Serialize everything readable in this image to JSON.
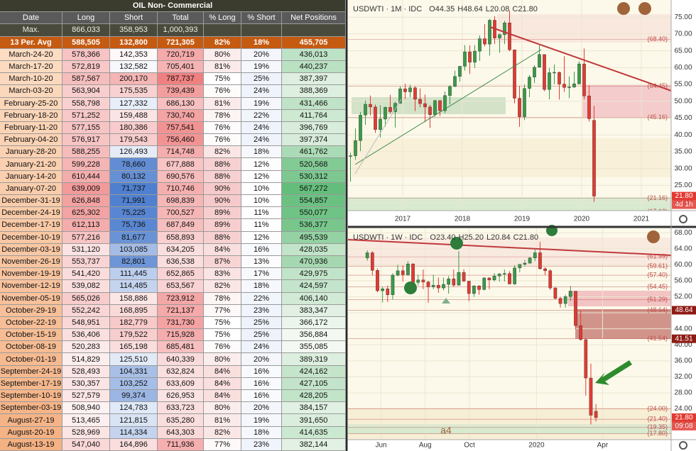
{
  "table": {
    "title": "OIL Non- Commercial",
    "header": [
      "Date",
      "Long",
      "Short",
      "Total",
      "% Long",
      "% Short",
      "Net Positions"
    ],
    "max": [
      "Max.",
      "866,033",
      "358,953",
      "1,000,393"
    ],
    "avg": [
      "13 Per. Avg",
      "588,505",
      "132,800",
      "721,305",
      "82%",
      "18%",
      "455,705"
    ],
    "rows": [
      [
        "March-24-20",
        "578,366",
        "142,353",
        "720,719",
        "80%",
        "20%",
        "436,013"
      ],
      [
        "March-17-20",
        "572,819",
        "132,582",
        "705,401",
        "81%",
        "19%",
        "440,237"
      ],
      [
        "March-10-20",
        "587,567",
        "200,170",
        "787,737",
        "75%",
        "25%",
        "387,397"
      ],
      [
        "March-03-20",
        "563,904",
        "175,535",
        "739,439",
        "76%",
        "24%",
        "388,369"
      ],
      [
        "February-25-20",
        "558,798",
        "127,332",
        "686,130",
        "81%",
        "19%",
        "431,466"
      ],
      [
        "February-18-20",
        "571,252",
        "159,488",
        "730,740",
        "78%",
        "22%",
        "411,764"
      ],
      [
        "February-11-20",
        "577,155",
        "180,386",
        "757,541",
        "76%",
        "24%",
        "396,769"
      ],
      [
        "February-04-20",
        "576,917",
        "179,543",
        "756,460",
        "76%",
        "24%",
        "397,374"
      ],
      [
        "January-28-20",
        "588,255",
        "126,493",
        "714,748",
        "82%",
        "18%",
        "461,762"
      ],
      [
        "January-21-20",
        "599,228",
        "78,660",
        "677,888",
        "88%",
        "12%",
        "520,568"
      ],
      [
        "January-14-20",
        "610,444",
        "80,132",
        "690,576",
        "88%",
        "12%",
        "530,312"
      ],
      [
        "January-07-20",
        "639,009",
        "71,737",
        "710,746",
        "90%",
        "10%",
        "567,272"
      ],
      [
        "December-31-19",
        "626,848",
        "71,991",
        "698,839",
        "90%",
        "10%",
        "554,857"
      ],
      [
        "December-24-19",
        "625,302",
        "75,225",
        "700,527",
        "89%",
        "11%",
        "550,077"
      ],
      [
        "December-17-19",
        "612,113",
        "75,736",
        "687,849",
        "89%",
        "11%",
        "536,377"
      ],
      [
        "December-10-19",
        "577,216",
        "81,677",
        "658,893",
        "88%",
        "12%",
        "495,539"
      ],
      [
        "December-03-19",
        "531,120",
        "103,085",
        "634,205",
        "84%",
        "16%",
        "428,035"
      ],
      [
        "November-26-19",
        "553,737",
        "82,801",
        "636,538",
        "87%",
        "13%",
        "470,936"
      ],
      [
        "November-19-19",
        "541,420",
        "111,445",
        "652,865",
        "83%",
        "17%",
        "429,975"
      ],
      [
        "November-12-19",
        "539,082",
        "114,485",
        "653,567",
        "82%",
        "18%",
        "424,597"
      ],
      [
        "November-05-19",
        "565,026",
        "158,886",
        "723,912",
        "78%",
        "22%",
        "406,140"
      ],
      [
        "October-29-19",
        "552,242",
        "168,895",
        "721,137",
        "77%",
        "23%",
        "383,347"
      ],
      [
        "October-22-19",
        "548,951",
        "182,779",
        "731,730",
        "75%",
        "25%",
        "366,172"
      ],
      [
        "October-15-19",
        "536,406",
        "179,522",
        "715,928",
        "75%",
        "25%",
        "356,884"
      ],
      [
        "October-08-19",
        "520,283",
        "165,198",
        "685,481",
        "76%",
        "24%",
        "355,085"
      ],
      [
        "October-01-19",
        "514,829",
        "125,510",
        "640,339",
        "80%",
        "20%",
        "389,319"
      ],
      [
        "September-24-19",
        "528,493",
        "104,331",
        "632,824",
        "84%",
        "16%",
        "424,162"
      ],
      [
        "September-17-19",
        "530,357",
        "103,252",
        "633,609",
        "84%",
        "16%",
        "427,105"
      ],
      [
        "September-10-19",
        "527,579",
        "99,374",
        "626,953",
        "84%",
        "16%",
        "428,205"
      ],
      [
        "September-03-19",
        "508,940",
        "124,783",
        "633,723",
        "80%",
        "20%",
        "384,157"
      ],
      [
        "August-27-19",
        "513,465",
        "121,815",
        "635,280",
        "81%",
        "19%",
        "391,650"
      ],
      [
        "August-20-19",
        "528,969",
        "114,334",
        "643,303",
        "82%",
        "18%",
        "414,635"
      ],
      [
        "August-13-19",
        "547,040",
        "164,896",
        "711,936",
        "77%",
        "23%",
        "382,144"
      ]
    ]
  },
  "chart_data": [
    {
      "type": "candlestick",
      "title": "USDWTI · 1M · IDC",
      "ohlc_label": [
        "O44.35",
        "H48.64",
        "L20.08",
        "C21.80"
      ],
      "up_color": "#3a9a48",
      "down_color": "#e23a32",
      "level_color": "#c0504d",
      "xlim": [
        -0.5,
        64.5
      ],
      "ylim": [
        17.5,
        80.1
      ],
      "xticks": [
        {
          "value": 10.5,
          "label": "2017"
        },
        {
          "value": 22.5,
          "label": "2018"
        },
        {
          "value": 34.5,
          "label": "2019"
        },
        {
          "value": 46.5,
          "label": "2020"
        },
        {
          "value": 58.5,
          "label": "2021"
        }
      ],
      "yticks": [
        {
          "value": 20,
          "label": "20.00"
        },
        {
          "value": 25,
          "label": "25.00"
        },
        {
          "value": 30,
          "label": "30.00"
        },
        {
          "value": 35,
          "label": "35.00"
        },
        {
          "value": 40,
          "label": "40.00"
        },
        {
          "value": 45,
          "label": "45.00"
        },
        {
          "value": 50,
          "label": "50.00"
        },
        {
          "value": 55,
          "label": "55.00"
        },
        {
          "value": 60,
          "label": "60.00"
        },
        {
          "value": 65,
          "label": "65.00"
        },
        {
          "value": 70,
          "label": "70.00"
        },
        {
          "value": 75,
          "label": "75.00"
        }
      ],
      "levels": [
        {
          "value": 68.4,
          "label": "(68.40)"
        },
        {
          "value": 54.45,
          "label": "(54.45)"
        },
        {
          "value": 45.16,
          "label": "(45.16)"
        },
        {
          "value": 21.16,
          "label": "(21.16)"
        },
        {
          "value": 17.12,
          "label": "(17.12)"
        }
      ],
      "price_tags": [
        {
          "value": 21.8,
          "label": "21.80",
          "color": "#e23a32"
        }
      ],
      "countdown": "4d 1h",
      "ohlc": [
        [
          33.6,
          34.7,
          26.1,
          33.8
        ],
        [
          33.8,
          41.9,
          32.6,
          38.3
        ],
        [
          38.3,
          46.8,
          35.2,
          45.9
        ],
        [
          45.9,
          50.2,
          43.0,
          49.1
        ],
        [
          49.1,
          51.7,
          45.8,
          48.3
        ],
        [
          48.3,
          49.0,
          40.6,
          41.6
        ],
        [
          41.6,
          48.8,
          39.2,
          44.7
        ],
        [
          44.7,
          48.4,
          42.5,
          48.2
        ],
        [
          48.2,
          51.9,
          46.3,
          46.9
        ],
        [
          46.9,
          49.9,
          42.2,
          49.4
        ],
        [
          49.4,
          54.5,
          49.3,
          53.7
        ],
        [
          53.7,
          55.2,
          50.7,
          52.8
        ],
        [
          52.8,
          54.9,
          51.2,
          54.0
        ],
        [
          54.0,
          54.5,
          47.1,
          50.6
        ],
        [
          50.6,
          53.8,
          48.2,
          49.3
        ],
        [
          49.3,
          52.0,
          43.8,
          48.3
        ],
        [
          48.3,
          48.9,
          42.1,
          46.0
        ],
        [
          46.0,
          50.4,
          45.4,
          50.2
        ],
        [
          50.2,
          50.2,
          45.6,
          47.2
        ],
        [
          47.2,
          52.9,
          46.5,
          51.7
        ],
        [
          51.7,
          54.8,
          49.1,
          54.4
        ],
        [
          54.4,
          59.1,
          54.2,
          57.4
        ],
        [
          57.4,
          60.5,
          55.8,
          60.4
        ],
        [
          60.4,
          66.7,
          59.1,
          64.7
        ],
        [
          64.7,
          66.6,
          58.1,
          61.6
        ],
        [
          61.6,
          66.7,
          59.9,
          64.9
        ],
        [
          64.9,
          69.6,
          62.0,
          68.6
        ],
        [
          68.6,
          72.9,
          66.3,
          67.0
        ],
        [
          67.0,
          74.5,
          63.6,
          74.1
        ],
        [
          74.1,
          75.3,
          67.0,
          68.8
        ],
        [
          68.8,
          70.1,
          64.4,
          69.8
        ],
        [
          69.8,
          73.9,
          67.0,
          73.3
        ],
        [
          73.3,
          76.9,
          64.9,
          65.3
        ],
        [
          65.3,
          65.4,
          49.4,
          50.9
        ],
        [
          50.9,
          54.6,
          42.4,
          45.4
        ],
        [
          45.4,
          55.0,
          44.4,
          53.8
        ],
        [
          53.8,
          57.8,
          51.2,
          57.2
        ],
        [
          57.2,
          60.7,
          55.4,
          60.1
        ],
        [
          60.1,
          66.6,
          60.0,
          63.9
        ],
        [
          63.9,
          63.9,
          53.0,
          53.5
        ],
        [
          53.5,
          59.9,
          50.6,
          58.5
        ],
        [
          58.5,
          60.9,
          55.1,
          58.6
        ],
        [
          58.6,
          58.8,
          50.5,
          55.1
        ],
        [
          55.1,
          63.4,
          52.8,
          54.1
        ],
        [
          54.1,
          57.4,
          50.9,
          54.2
        ],
        [
          54.2,
          58.8,
          54.0,
          55.2
        ],
        [
          55.2,
          61.9,
          55.0,
          61.1
        ],
        [
          61.1,
          65.7,
          50.6,
          51.6
        ],
        [
          51.6,
          54.7,
          44.0,
          44.8
        ],
        [
          44.35,
          48.64,
          20.08,
          21.8
        ]
      ]
    },
    {
      "type": "candlestick",
      "title": "USDWTI · 1W · IDC",
      "ohlc_label": [
        "O23.40",
        "H25.20",
        "L20.84",
        "C21.80"
      ],
      "up_color": "#3a9a48",
      "down_color": "#e23a32",
      "level_color": "#c0504d",
      "xlim": [
        -3.8,
        59.8
      ],
      "ylim": [
        16.3,
        69.1
      ],
      "xticks": [
        {
          "value": 2.7,
          "label": "Jun"
        },
        {
          "value": 11.4,
          "label": "Aug"
        },
        {
          "value": 20.1,
          "label": "Oct"
        },
        {
          "value": 33.3,
          "label": "2020"
        },
        {
          "value": 46.3,
          "label": "Apr"
        }
      ],
      "yticks": [
        {
          "value": 20,
          "label": "20.00"
        },
        {
          "value": 24,
          "label": "24.00"
        },
        {
          "value": 28,
          "label": "28.00"
        },
        {
          "value": 32,
          "label": "32.00"
        },
        {
          "value": 36,
          "label": "36.00"
        },
        {
          "value": 40,
          "label": "40.00"
        },
        {
          "value": 44,
          "label": "44.00"
        },
        {
          "value": 48,
          "label": "48.00"
        },
        {
          "value": 52,
          "label": "52.00"
        },
        {
          "value": 56,
          "label": "56.00"
        },
        {
          "value": 60,
          "label": "60.00"
        },
        {
          "value": 64,
          "label": "64.00"
        },
        {
          "value": 68,
          "label": "68.00"
        }
      ],
      "levels": [
        {
          "value": 61.99,
          "label": "(61.99)"
        },
        {
          "value": 59.61,
          "label": "(59.61)"
        },
        {
          "value": 57.4,
          "label": "(57.40)"
        },
        {
          "value": 54.45,
          "label": "(54.45)"
        },
        {
          "value": 51.29,
          "label": "(51.29)"
        },
        {
          "value": 48.64,
          "label": "(48.64)"
        },
        {
          "value": 41.54,
          "label": "(41.54)"
        },
        {
          "value": 24.0,
          "label": "(24.00)"
        },
        {
          "value": 21.4,
          "label": "(21.40)"
        },
        {
          "value": 19.35,
          "label": "(19.35)"
        },
        {
          "value": 17.8,
          "label": "(17.80)"
        }
      ],
      "price_tags": [
        {
          "value": 48.64,
          "label": "48.64",
          "color": "#8e1b14"
        },
        {
          "value": 41.51,
          "label": "41.51",
          "color": "#8e1b14"
        },
        {
          "value": 21.8,
          "label": "21.80",
          "color": "#e23a32"
        }
      ],
      "countdown": "09:08",
      "annotation": "a4",
      "ohlc": [
        [
          61.7,
          63.6,
          61.0,
          63.0
        ],
        [
          63.0,
          63.4,
          57.3,
          58.6
        ],
        [
          58.6,
          59.1,
          53.1,
          53.5
        ],
        [
          53.5,
          54.5,
          50.6,
          54.0
        ],
        [
          54.0,
          54.8,
          50.7,
          52.5
        ],
        [
          52.5,
          57.9,
          51.3,
          57.4
        ],
        [
          57.4,
          60.0,
          57.1,
          58.5
        ],
        [
          58.5,
          59.9,
          55.8,
          57.5
        ],
        [
          57.5,
          60.9,
          57.2,
          60.2
        ],
        [
          60.2,
          60.4,
          55.2,
          55.6
        ],
        [
          55.6,
          57.5,
          54.8,
          56.2
        ],
        [
          56.2,
          58.8,
          53.9,
          55.7
        ],
        [
          55.7,
          56.0,
          50.5,
          54.5
        ],
        [
          54.5,
          57.5,
          53.9,
          54.9
        ],
        [
          54.9,
          56.8,
          53.0,
          54.2
        ],
        [
          54.2,
          56.8,
          53.6,
          55.1
        ],
        [
          55.1,
          57.2,
          52.8,
          56.5
        ],
        [
          56.5,
          58.8,
          54.5,
          54.9
        ],
        [
          54.9,
          63.4,
          54.8,
          58.1
        ],
        [
          58.1,
          58.9,
          55.7,
          55.9
        ],
        [
          55.9,
          56.0,
          50.9,
          52.8
        ],
        [
          52.8,
          54.9,
          52.0,
          54.7
        ],
        [
          54.7,
          54.9,
          52.5,
          53.8
        ],
        [
          53.8,
          56.9,
          53.6,
          56.7
        ],
        [
          56.7,
          56.9,
          53.9,
          56.2
        ],
        [
          56.2,
          57.9,
          55.8,
          57.2
        ],
        [
          57.2,
          57.9,
          55.8,
          57.7
        ],
        [
          57.7,
          58.8,
          55.8,
          57.8
        ],
        [
          57.8,
          58.4,
          55.1,
          55.2
        ],
        [
          55.2,
          59.9,
          55.0,
          59.2
        ],
        [
          59.2,
          60.0,
          58.1,
          60.1
        ],
        [
          60.1,
          61.2,
          59.6,
          60.4
        ],
        [
          60.4,
          61.9,
          60.3,
          61.7
        ],
        [
          61.7,
          63.8,
          60.9,
          63.0
        ],
        [
          63.0,
          65.7,
          58.8,
          59.0
        ],
        [
          59.0,
          59.4,
          57.4,
          58.5
        ],
        [
          58.5,
          58.9,
          53.7,
          54.2
        ],
        [
          54.2,
          54.4,
          51.3,
          51.6
        ],
        [
          51.6,
          52.0,
          49.3,
          50.3
        ],
        [
          50.3,
          52.5,
          49.3,
          52.05
        ],
        [
          52.05,
          54.7,
          51.0,
          53.4
        ],
        [
          53.4,
          53.4,
          43.9,
          44.8
        ],
        [
          44.8,
          48.6,
          41.0,
          41.3
        ],
        [
          41.3,
          41.6,
          27.3,
          31.7
        ],
        [
          31.7,
          35.3,
          20.1,
          22.4
        ],
        [
          23.4,
          25.2,
          20.84,
          21.8
        ]
      ]
    }
  ]
}
